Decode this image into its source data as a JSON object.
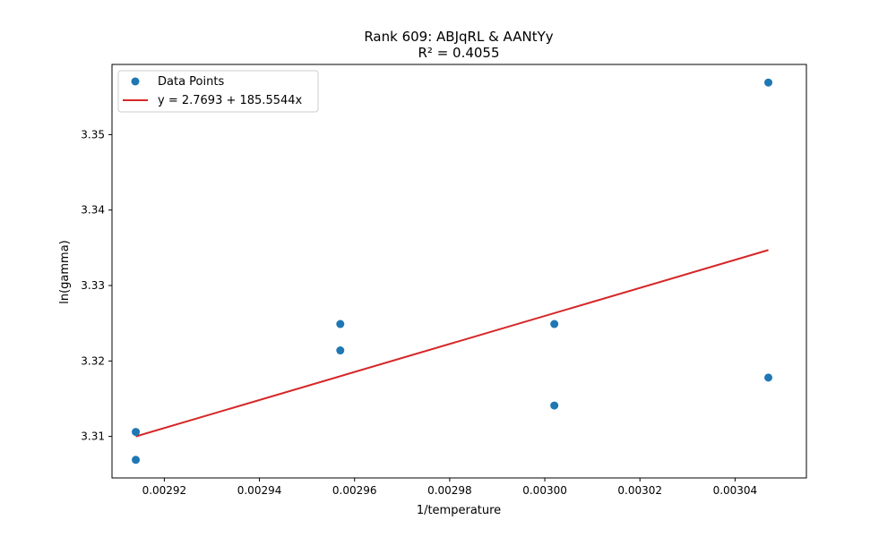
{
  "chart_data": {
    "type": "scatter",
    "title": "Rank 609: ABJqRL & AANtYy",
    "subtitle": "R² = 0.4055",
    "xlabel": "1/temperature",
    "ylabel": "ln(gamma)",
    "xlim": [
      0.002909,
      0.003055
    ],
    "ylim": [
      3.3045,
      3.3593
    ],
    "xticks": [
      0.00292,
      0.00294,
      0.00296,
      0.00298,
      0.003,
      0.00302,
      0.00304
    ],
    "xtick_labels": [
      "0.00292",
      "0.00294",
      "0.00296",
      "0.00298",
      "0.00300",
      "0.00302",
      "0.00304"
    ],
    "yticks": [
      3.31,
      3.32,
      3.33,
      3.34,
      3.35
    ],
    "ytick_labels": [
      "3.31",
      "3.32",
      "3.33",
      "3.34",
      "3.35"
    ],
    "series": [
      {
        "name": "Data Points",
        "kind": "scatter",
        "color": "#1f77b4",
        "x": [
          0.002914,
          0.002914,
          0.002957,
          0.002957,
          0.003002,
          0.003002,
          0.003047,
          0.003047
        ],
        "y": [
          3.3106,
          3.3069,
          3.3249,
          3.3214,
          3.3249,
          3.3141,
          3.3178,
          3.3569
        ]
      },
      {
        "name": "y = 2.7693 + 185.5544x",
        "kind": "line",
        "color": "#d62728",
        "x": [
          0.002914,
          0.003047
        ],
        "y": [
          3.31,
          3.3347
        ]
      }
    ],
    "grid": false,
    "legend": "top-left"
  }
}
